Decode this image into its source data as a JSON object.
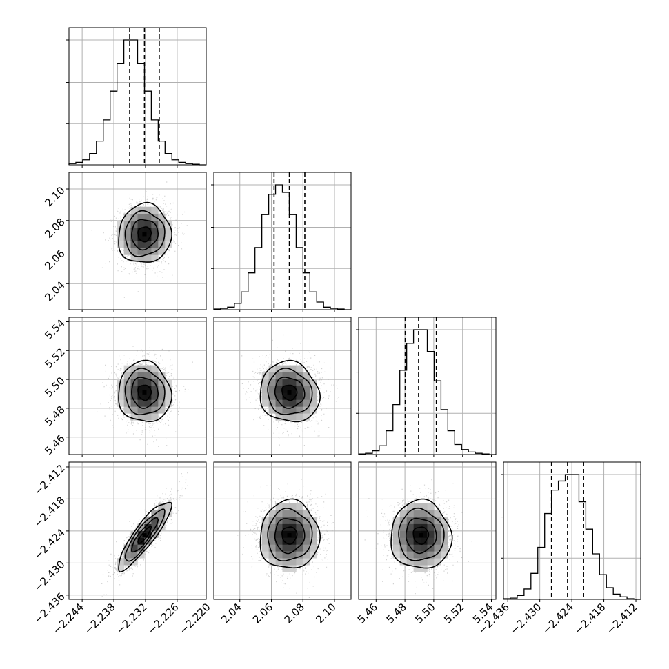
{
  "chart_data": {
    "type": "corner",
    "title": "",
    "parameters": [
      {
        "name": "",
        "range": [
          -2.2465,
          -2.2205
        ],
        "ticks": [
          -2.244,
          -2.238,
          -2.232,
          -2.226,
          -2.22
        ],
        "tick_labels": [
          "−2.244",
          "−2.238",
          "−2.232",
          "−2.226",
          "−2.220"
        ],
        "quantiles": [
          -2.235,
          -2.2322,
          -2.2294
        ],
        "histogram_counts": [
          2,
          4,
          8,
          18,
          38,
          72,
          118,
          162,
          200,
          200,
          162,
          118,
          72,
          38,
          18,
          8,
          4,
          2,
          1,
          0
        ]
      },
      {
        "name": "",
        "range": [
          2.0235,
          2.1105
        ],
        "ticks": [
          2.04,
          2.06,
          2.08,
          2.1
        ],
        "tick_labels": [
          "2.04",
          "2.06",
          "2.08",
          "2.10"
        ],
        "quantiles": [
          2.0617,
          2.0714,
          2.0812
        ],
        "histogram_counts": [
          1,
          2,
          4,
          10,
          28,
          58,
          98,
          150,
          182,
          197,
          185,
          150,
          98,
          58,
          28,
          12,
          4,
          2,
          1,
          0
        ]
      },
      {
        "name": "",
        "range": [
          5.4479,
          5.5431
        ],
        "ticks": [
          5.46,
          5.48,
          5.5,
          5.52,
          5.54
        ],
        "tick_labels": [
          "5.46",
          "5.48",
          "5.50",
          "5.52",
          "5.54"
        ],
        "quantiles": [
          5.4802,
          5.4895,
          5.5018
        ],
        "histogram_counts": [
          1,
          2,
          6,
          14,
          38,
          80,
          135,
          178,
          200,
          200,
          165,
          118,
          72,
          38,
          16,
          8,
          4,
          2,
          1,
          0
        ]
      },
      {
        "name": "",
        "range": [
          -2.4368,
          -2.4111
        ],
        "ticks": [
          -2.436,
          -2.43,
          -2.424,
          -2.418,
          -2.412
        ],
        "tick_labels": [
          "−2.436",
          "−2.430",
          "−2.424",
          "−2.418",
          "−2.412"
        ],
        "quantiles": [
          -2.4278,
          -2.4248,
          -2.4218
        ],
        "histogram_counts": [
          1,
          2,
          6,
          16,
          40,
          80,
          132,
          168,
          182,
          192,
          192,
          150,
          108,
          70,
          38,
          18,
          8,
          4,
          1,
          0
        ]
      }
    ],
    "pairs": [
      {
        "x_param": 0,
        "y_param": 1,
        "center": [
          -2.2322,
          2.0714
        ],
        "sigma": [
          0.0025,
          0.0094
        ],
        "rho": 0.05
      },
      {
        "x_param": 0,
        "y_param": 2,
        "center": [
          -2.2322,
          5.491
        ],
        "sigma": [
          0.0025,
          0.0105
        ],
        "rho": -0.05
      },
      {
        "x_param": 1,
        "y_param": 2,
        "center": [
          2.0714,
          5.491
        ],
        "sigma": [
          0.0094,
          0.0105
        ],
        "rho": -0.08
      },
      {
        "x_param": 0,
        "y_param": 3,
        "center": [
          -2.2322,
          -2.4248
        ],
        "sigma": [
          0.0025,
          0.0032
        ],
        "rho": 0.88
      },
      {
        "x_param": 1,
        "y_param": 3,
        "center": [
          2.0714,
          -2.4248
        ],
        "sigma": [
          0.0094,
          0.0032
        ],
        "rho": 0.02
      },
      {
        "x_param": 2,
        "y_param": 3,
        "center": [
          5.491,
          -2.4248
        ],
        "sigma": [
          0.0105,
          0.0032
        ],
        "rho": -0.02
      }
    ],
    "contour_levels_sigma": [
      0.5,
      1.0,
      1.5,
      2.0
    ],
    "grid": true,
    "colors": {
      "histogram": "#000000",
      "contours": "#000000",
      "points": "#000000",
      "density": "#000000",
      "grid": "#b0b0b0"
    }
  }
}
